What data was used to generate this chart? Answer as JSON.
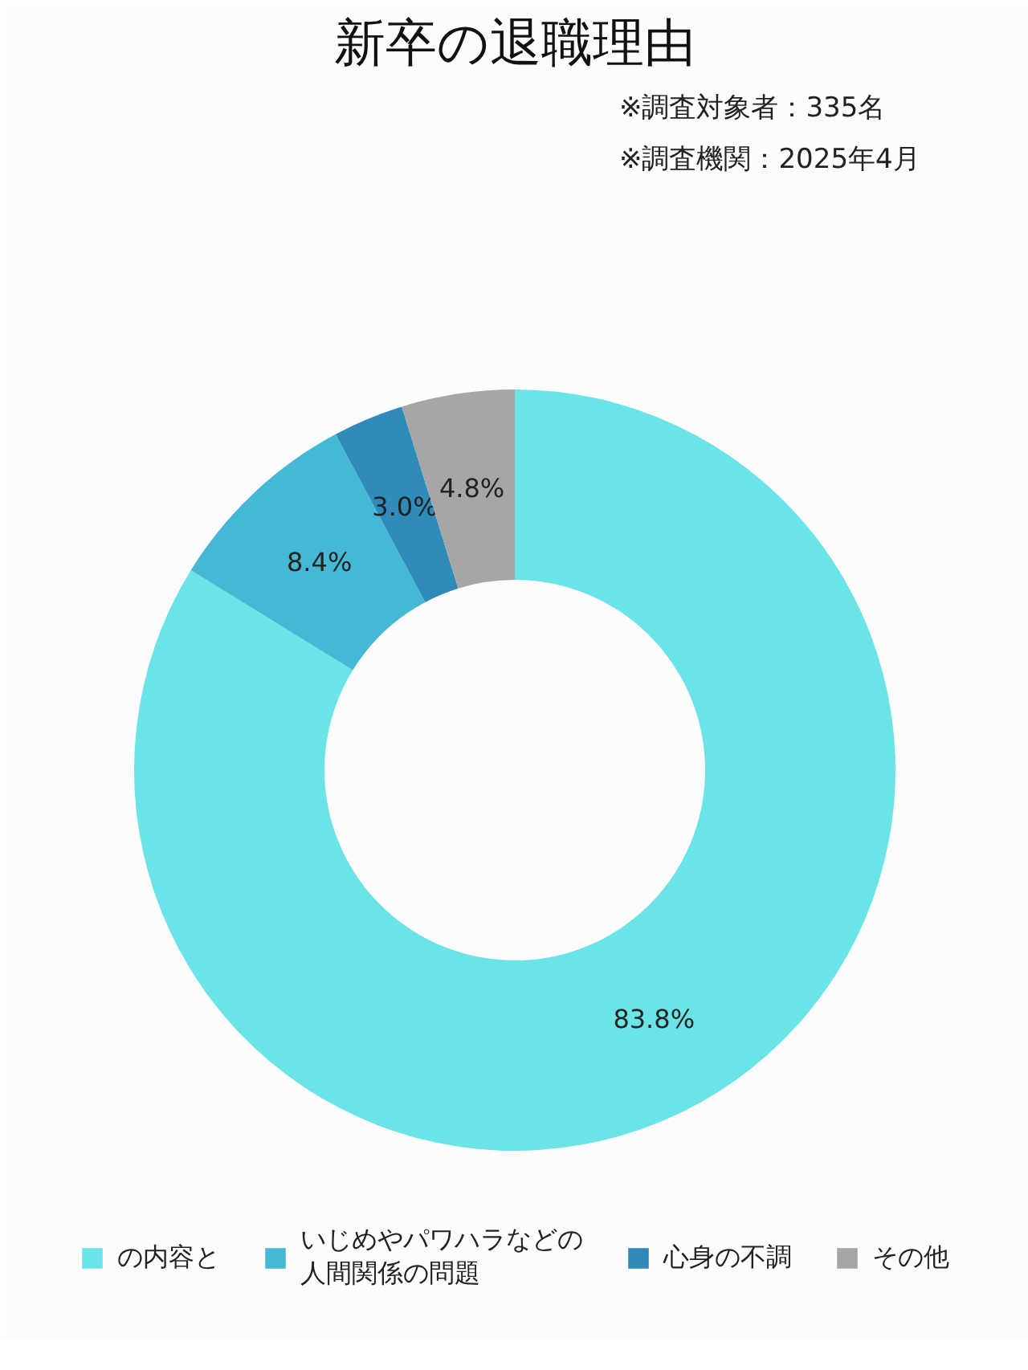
{
  "chart_data": {
    "type": "donut",
    "title": "新卒の退職理由",
    "subtitle": "※調査対象者：335名",
    "annotations": [
      "※調査機関：2025年4月"
    ],
    "categories": [
      "の内容と",
      "いじめやパワハラなどの人間関係の問題",
      "心身の不調",
      "その他"
    ],
    "values": [
      83.8,
      8.4,
      3.0,
      4.8
    ],
    "colors": [
      "#6ae4e7",
      "#45b8d5",
      "#2e8bba",
      "#a6a6a6"
    ],
    "value_labels": [
      "83.8%",
      "8.4%",
      "3.0%",
      "4.8%"
    ],
    "legend": "bottom"
  }
}
